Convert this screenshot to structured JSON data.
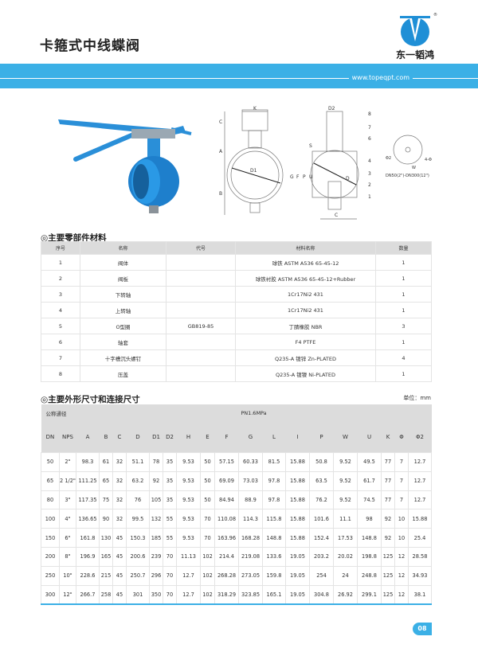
{
  "header": {
    "title": "卡箍式中线蝶阀",
    "brand": "东一韬鸿",
    "url": "www.topeqpt.com"
  },
  "drawing": {
    "labels": {
      "K": "K",
      "C": "C",
      "A": "A",
      "B": "B",
      "D1": "D1",
      "D2": "D2",
      "S": "S",
      "G": "G",
      "F": "F",
      "P": "P",
      "U": "U",
      "D": "D",
      "W": "W",
      "phi2": "Φ2",
      "holes": "4-Φ",
      "n1": "1",
      "n2": "2",
      "n3": "3",
      "n4": "4",
      "n6": "6",
      "n7": "7",
      "n8": "8"
    },
    "range": "DN50(2\")-DN300(12\")"
  },
  "parts": {
    "title": "◎主要零部件材料",
    "headers": [
      "序号",
      "名称",
      "代号",
      "材料名称",
      "数量"
    ],
    "rows": [
      [
        "1",
        "阀体",
        "",
        "球铁 ASTM A536 65-45-12",
        "1"
      ],
      [
        "2",
        "阀板",
        "",
        "球铁衬胶 ASTM A536 65-45-12+Rubber",
        "1"
      ],
      [
        "3",
        "下转轴",
        "",
        "1Cr17Ni2 431",
        "1"
      ],
      [
        "4",
        "上转轴",
        "",
        "1Cr17Ni2 431",
        "1"
      ],
      [
        "5",
        "O型圈",
        "GB819-85",
        "丁腈橡胶 NBR",
        "3"
      ],
      [
        "6",
        "轴套",
        "",
        "F4 PTFE",
        "1"
      ],
      [
        "7",
        "十字槽沉头螺钉",
        "",
        "Q235-A 镀锌 Zn-PLATED",
        "4"
      ],
      [
        "8",
        "压盖",
        "",
        "Q235-A 镀镍 Ni-PLATED",
        "1"
      ]
    ]
  },
  "dims": {
    "title": "◎主要外形尺寸和连接尺寸",
    "unit": "单位：mm",
    "nominal": "公称通径",
    "pressure": "PN1.6MPa",
    "headers": [
      "DN",
      "NPS",
      "A",
      "B",
      "C",
      "D",
      "D1",
      "D2",
      "H",
      "E",
      "F",
      "G",
      "L",
      "I",
      "P",
      "W",
      "U",
      "K",
      "Φ",
      "Φ2"
    ],
    "rows": [
      [
        "50",
        "2\"",
        "98.3",
        "61",
        "32",
        "51.1",
        "78",
        "35",
        "9.53",
        "50",
        "57.15",
        "60.33",
        "81.5",
        "15.88",
        "50.8",
        "9.52",
        "49.5",
        "77",
        "7",
        "12.7"
      ],
      [
        "65",
        "2 1/2\"",
        "111.25",
        "65",
        "32",
        "63.2",
        "92",
        "35",
        "9.53",
        "50",
        "69.09",
        "73.03",
        "97.8",
        "15.88",
        "63.5",
        "9.52",
        "61.7",
        "77",
        "7",
        "12.7"
      ],
      [
        "80",
        "3\"",
        "117.35",
        "75",
        "32",
        "76",
        "105",
        "35",
        "9.53",
        "50",
        "84.94",
        "88.9",
        "97.8",
        "15.88",
        "76.2",
        "9.52",
        "74.5",
        "77",
        "7",
        "12.7"
      ],
      [
        "100",
        "4\"",
        "136.65",
        "90",
        "32",
        "99.5",
        "132",
        "55",
        "9.53",
        "70",
        "110.08",
        "114.3",
        "115.8",
        "15.88",
        "101.6",
        "11.1",
        "98",
        "92",
        "10",
        "15.88"
      ],
      [
        "150",
        "6\"",
        "161.8",
        "130",
        "45",
        "150.3",
        "185",
        "55",
        "9.53",
        "70",
        "163.96",
        "168.28",
        "148.8",
        "15.88",
        "152.4",
        "17.53",
        "148.8",
        "92",
        "10",
        "25.4"
      ],
      [
        "200",
        "8\"",
        "196.9",
        "165",
        "45",
        "200.6",
        "239",
        "70",
        "11.13",
        "102",
        "214.4",
        "219.08",
        "133.6",
        "19.05",
        "203.2",
        "20.02",
        "198.8",
        "125",
        "12",
        "28.58"
      ],
      [
        "250",
        "10\"",
        "228.6",
        "215",
        "45",
        "250.7",
        "296",
        "70",
        "12.7",
        "102",
        "268.28",
        "273.05",
        "159.8",
        "19.05",
        "254",
        "24",
        "248.8",
        "125",
        "12",
        "34.93"
      ],
      [
        "300",
        "12\"",
        "266.7",
        "258",
        "45",
        "301",
        "350",
        "70",
        "12.7",
        "102",
        "318.29",
        "323.85",
        "165.1",
        "19.05",
        "304.8",
        "26.92",
        "299.1",
        "125",
        "12",
        "38.1"
      ]
    ]
  },
  "page_number": "08",
  "colors": {
    "accent": "#3bb0e6",
    "valve_blue": "#1f8fd6",
    "header_gray": "#dcdcdc"
  }
}
